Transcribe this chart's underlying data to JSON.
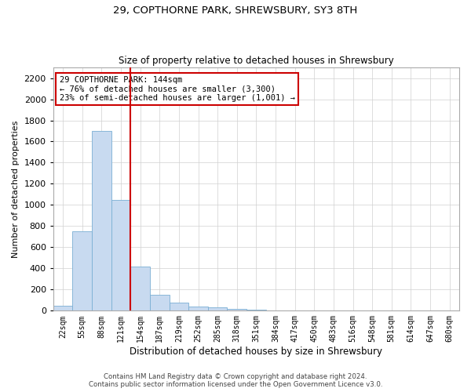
{
  "title": "29, COPTHORNE PARK, SHREWSBURY, SY3 8TH",
  "subtitle": "Size of property relative to detached houses in Shrewsbury",
  "xlabel": "Distribution of detached houses by size in Shrewsbury",
  "ylabel": "Number of detached properties",
  "footer_line1": "Contains HM Land Registry data © Crown copyright and database right 2024.",
  "footer_line2": "Contains public sector information licensed under the Open Government Licence v3.0.",
  "bar_labels": [
    "22sqm",
    "55sqm",
    "88sqm",
    "121sqm",
    "154sqm",
    "187sqm",
    "219sqm",
    "252sqm",
    "285sqm",
    "318sqm",
    "351sqm",
    "384sqm",
    "417sqm",
    "450sqm",
    "483sqm",
    "516sqm",
    "548sqm",
    "581sqm",
    "614sqm",
    "647sqm",
    "680sqm"
  ],
  "bar_values": [
    50,
    750,
    1700,
    1050,
    420,
    150,
    80,
    40,
    30,
    20,
    10,
    5,
    3,
    2,
    1,
    1,
    0,
    0,
    0,
    0,
    0
  ],
  "bar_color": "#c8daf0",
  "bar_edge_color": "#7aafd4",
  "vline_x": 3.5,
  "vline_color": "#cc0000",
  "ylim": [
    0,
    2300
  ],
  "yticks": [
    0,
    200,
    400,
    600,
    800,
    1000,
    1200,
    1400,
    1600,
    1800,
    2000,
    2200
  ],
  "annotation_text": "29 COPTHORNE PARK: 144sqm\n← 76% of detached houses are smaller (3,300)\n23% of semi-detached houses are larger (1,001) →",
  "annotation_box_color": "#ffffff",
  "annotation_box_edge": "#cc0000",
  "grid_color": "#d0d0d0",
  "background_color": "#ffffff",
  "fig_width": 6.0,
  "fig_height": 5.0,
  "dpi": 100
}
